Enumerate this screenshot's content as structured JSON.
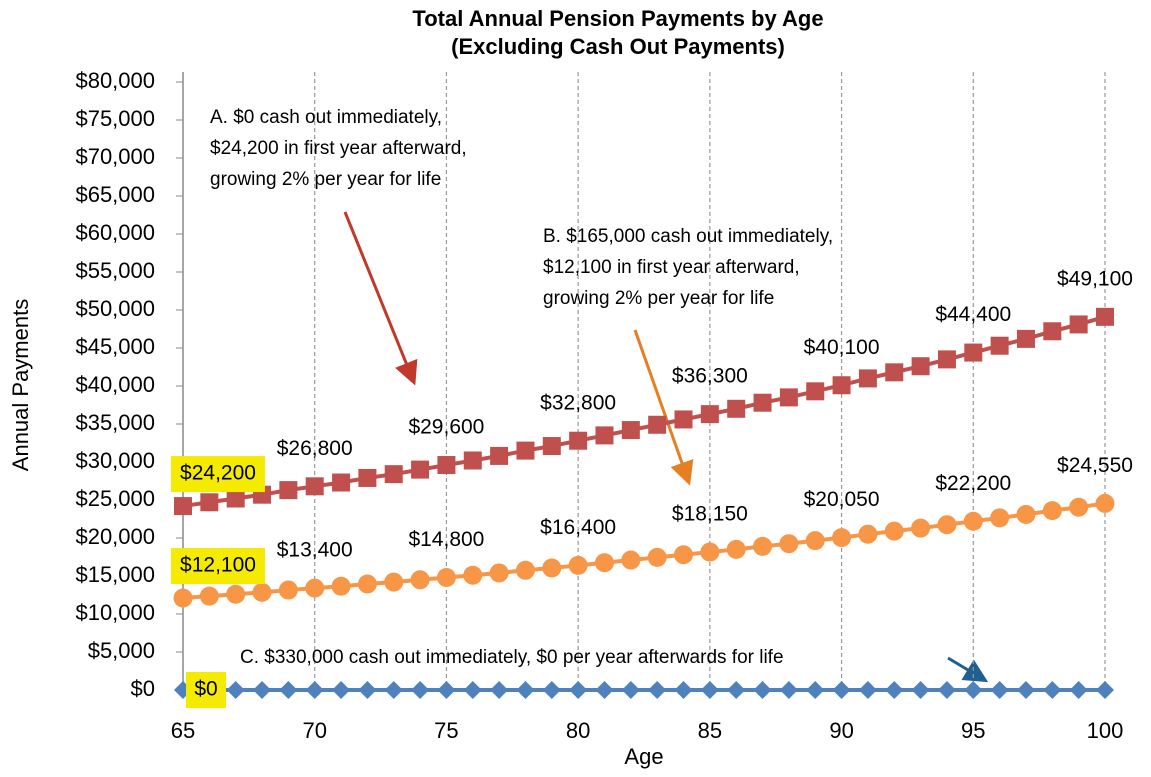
{
  "chart_data": {
    "type": "line",
    "title": [
      "Total Annual Pension Payments by Age",
      "(Excluding Cash Out Payments)"
    ],
    "x_label": "Age",
    "y_label": "Annual Payments",
    "x": [
      65,
      66,
      67,
      68,
      69,
      70,
      71,
      72,
      73,
      74,
      75,
      76,
      77,
      78,
      79,
      80,
      81,
      82,
      83,
      84,
      85,
      86,
      87,
      88,
      89,
      90,
      91,
      92,
      93,
      94,
      95,
      96,
      97,
      98,
      99,
      100
    ],
    "xlim": [
      65,
      100
    ],
    "xticks": [
      65,
      70,
      75,
      80,
      85,
      90,
      95,
      100
    ],
    "ylim": [
      0,
      80000
    ],
    "yticks": [
      {
        "value": 0,
        "label": "$0"
      },
      {
        "value": 5000,
        "label": "$5,000"
      },
      {
        "value": 10000,
        "label": "$10,000"
      },
      {
        "value": 15000,
        "label": "$15,000"
      },
      {
        "value": 20000,
        "label": "$20,000"
      },
      {
        "value": 25000,
        "label": "$25,000"
      },
      {
        "value": 30000,
        "label": "$30,000"
      },
      {
        "value": 35000,
        "label": "$35,000"
      },
      {
        "value": 40000,
        "label": "$40,000"
      },
      {
        "value": 45000,
        "label": "$45,000"
      },
      {
        "value": 50000,
        "label": "$50,000"
      },
      {
        "value": 55000,
        "label": "$55,000"
      },
      {
        "value": 60000,
        "label": "$60,000"
      },
      {
        "value": 65000,
        "label": "$65,000"
      },
      {
        "value": 70000,
        "label": "$70,000"
      },
      {
        "value": 75000,
        "label": "$75,000"
      },
      {
        "value": 80000,
        "label": "$80,000"
      }
    ],
    "x_grid": true,
    "series": [
      {
        "color": "#c0504d",
        "marker": "square",
        "values": [
          24200,
          24700,
          25200,
          25700,
          26300,
          26800,
          27300,
          27900,
          28400,
          29000,
          29600,
          30200,
          30800,
          31500,
          32100,
          32800,
          33500,
          34200,
          34900,
          35600,
          36300,
          37000,
          37800,
          38500,
          39300,
          40100,
          41000,
          41800,
          42600,
          43500,
          44400,
          45300,
          46200,
          47200,
          48100,
          49100
        ],
        "value_labels": [
          "$24,200",
          null,
          null,
          null,
          null,
          "$26,800",
          null,
          null,
          null,
          null,
          "$29,600",
          null,
          null,
          null,
          null,
          "$32,800",
          null,
          null,
          null,
          null,
          "$36,300",
          null,
          null,
          null,
          null,
          "$40,100",
          null,
          null,
          null,
          null,
          "$44,400",
          null,
          null,
          null,
          null,
          "$49,100"
        ]
      },
      {
        "color": "#f79646",
        "marker": "circle",
        "values": [
          12100,
          12350,
          12600,
          12850,
          13150,
          13400,
          13650,
          13950,
          14200,
          14500,
          14800,
          15100,
          15400,
          15750,
          16050,
          16400,
          16750,
          17100,
          17450,
          17800,
          18150,
          18500,
          18900,
          19250,
          19650,
          20050,
          20500,
          20900,
          21300,
          21750,
          22200,
          22650,
          23100,
          23600,
          24050,
          24550
        ],
        "value_labels": [
          "$12,100",
          null,
          null,
          null,
          null,
          "$13,400",
          null,
          null,
          null,
          null,
          "$14,800",
          null,
          null,
          null,
          null,
          "$16,400",
          null,
          null,
          null,
          null,
          "$18,150",
          null,
          null,
          null,
          null,
          "$20,050",
          null,
          null,
          null,
          null,
          "$22,200",
          null,
          null,
          null,
          null,
          "$24,550"
        ]
      },
      {
        "color": "#4f81bd",
        "marker": "diamond",
        "values": [
          0,
          0,
          0,
          0,
          0,
          0,
          0,
          0,
          0,
          0,
          0,
          0,
          0,
          0,
          0,
          0,
          0,
          0,
          0,
          0,
          0,
          0,
          0,
          0,
          0,
          0,
          0,
          0,
          0,
          0,
          0,
          0,
          0,
          0,
          0,
          0
        ],
        "value_labels": [
          "$0",
          null,
          null,
          null,
          null,
          null,
          null,
          null,
          null,
          null,
          null,
          null,
          null,
          null,
          null,
          null,
          null,
          null,
          null,
          null,
          null,
          null,
          null,
          null,
          null,
          null,
          null,
          null,
          null,
          null,
          null,
          null,
          null,
          null,
          null,
          null
        ]
      }
    ],
    "annotations": [
      {
        "lines": [
          "A. $0 cash out immediately,",
          "$24,200 in first year afterward,",
          "growing 2% per year for life"
        ],
        "color": "#c0392b"
      },
      {
        "lines": [
          "B. $165,000 cash out immediately,",
          "$12,100 in first year afterward,",
          "growing 2% per year for life"
        ],
        "color": "#e67e22"
      },
      {
        "lines": [
          "C. $330,000 cash out immediately, $0 per year afterwards for life"
        ],
        "color": "#2a7ab8"
      }
    ]
  }
}
